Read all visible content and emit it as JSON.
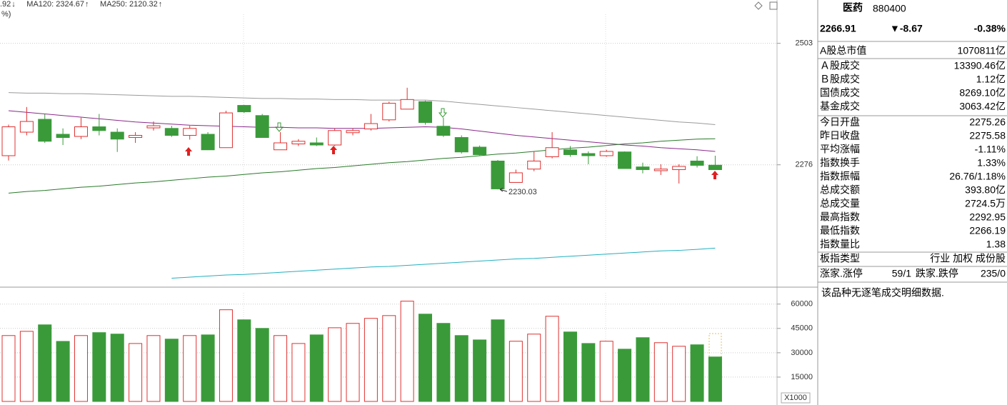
{
  "chart_data": [
    {
      "type": "candlestick",
      "legend": [
        {
          "name": ".92",
          "arrow": "↓",
          "color": "#2a7a2a"
        },
        {
          "name": "MA120: 2324.67",
          "arrow": "↑",
          "color": "#2a7a2a"
        },
        {
          "name": "MA250: 2120.32",
          "arrow": "↑",
          "color": "#20b0c0"
        }
      ],
      "legend_sub": "%)",
      "ylim": [
        2050,
        2584
      ],
      "yticks": [
        2503,
        2276
      ],
      "grid": true,
      "colors": {
        "up": "#e03030",
        "down": "#3a9a3a"
      },
      "candles": {
        "open": [
          2293,
          2337,
          2361,
          2333,
          2329,
          2347,
          2337,
          2327,
          2345,
          2344,
          2331,
          2333,
          2308,
          2387,
          2368,
          2304,
          2315,
          2317,
          2313,
          2336,
          2343,
          2360,
          2380,
          2394,
          2348,
          2327,
          2309,
          2283,
          2243,
          2268,
          2291,
          2304,
          2297,
          2293,
          2300,
          2272,
          2265,
          2267,
          2283,
          2275.26
        ],
        "close": [
          2347,
          2357,
          2320,
          2327,
          2347,
          2340,
          2324,
          2331,
          2349,
          2331,
          2344,
          2304,
          2373,
          2375,
          2327,
          2317,
          2320,
          2313,
          2340,
          2340,
          2353,
          2391,
          2398,
          2355,
          2331,
          2300,
          2295,
          2231,
          2261,
          2283,
          2308,
          2295,
          2293,
          2301,
          2269,
          2267,
          2268,
          2273,
          2275,
          2266.91
        ],
        "high": [
          2351,
          2384,
          2371,
          2344,
          2364,
          2371,
          2344,
          2337,
          2357,
          2349,
          2349,
          2337,
          2377,
          2388,
          2371,
          2337,
          2324,
          2327,
          2344,
          2344,
          2371,
          2394,
          2420,
          2396,
          2364,
          2331,
          2312,
          2285,
          2267,
          2301,
          2337,
          2311,
          2301,
          2304,
          2301,
          2280,
          2277,
          2277,
          2292,
          2292.95
        ],
        "low": [
          2284,
          2331,
          2317,
          2313,
          2324,
          2331,
          2300,
          2317,
          2340,
          2328,
          2323,
          2304,
          2308,
          2373,
          2327,
          2304,
          2311,
          2311,
          2311,
          2331,
          2340,
          2357,
          2380,
          2351,
          2328,
          2297,
          2293,
          2230.03,
          2243,
          2264,
          2288,
          2291,
          2277,
          2291,
          2269,
          2260,
          2257,
          2241,
          2271,
          2266.19
        ]
      },
      "annotation_index": 27,
      "lines": [
        {
          "color": "#9a9a9a",
          "values": [
            2411,
            2410,
            2410,
            2409,
            2409,
            2408,
            2407,
            2406,
            2405,
            2404,
            2404,
            2403,
            2402,
            2401,
            2400,
            2400,
            2399,
            2399,
            2398,
            2398,
            2397,
            2397,
            2397,
            2397,
            2395,
            2392,
            2389,
            2386,
            2383,
            2380,
            2377,
            2374,
            2371,
            2368,
            2365,
            2362,
            2359,
            2356,
            2354,
            2351
          ]
        },
        {
          "color": "#8a2a8a",
          "values": [
            2377,
            2374,
            2371,
            2368,
            2365,
            2362,
            2359,
            2356,
            2354,
            2352,
            2350,
            2349,
            2348,
            2347,
            2346,
            2346,
            2345,
            2345,
            2344,
            2344,
            2344,
            2345,
            2346,
            2347,
            2346,
            2343,
            2339,
            2335,
            2331,
            2328,
            2325,
            2322,
            2319,
            2316,
            2313,
            2311,
            2308,
            2306,
            2304,
            2301
          ]
        },
        {
          "color": "#2a7a2a",
          "values": [
            2223,
            2226,
            2228,
            2231,
            2234,
            2236,
            2239,
            2242,
            2244,
            2247,
            2250,
            2253,
            2255,
            2258,
            2261,
            2263,
            2266,
            2269,
            2271,
            2274,
            2277,
            2280,
            2282,
            2285,
            2288,
            2290,
            2293,
            2296,
            2298,
            2301,
            2304,
            2307,
            2309,
            2312,
            2315,
            2317,
            2320,
            2322,
            2324,
            2324.67
          ]
        },
        {
          "color": "#20b0c0",
          "values": [
            null,
            null,
            null,
            null,
            null,
            null,
            null,
            null,
            null,
            2064,
            2066,
            2068,
            2070,
            2071,
            2073,
            2075,
            2077,
            2079,
            2081,
            2083,
            2085,
            2086,
            2088,
            2090,
            2092,
            2094,
            2096,
            2098,
            2100,
            2101,
            2103,
            2105,
            2107,
            2109,
            2111,
            2113,
            2115,
            2116,
            2118,
            2120.32
          ]
        }
      ]
    },
    {
      "type": "bar",
      "unit_label": "X1000",
      "ylim": [
        0,
        70000
      ],
      "yticks": [
        60000,
        45000,
        30000,
        15000
      ],
      "grid": true,
      "values": [
        40600,
        43200,
        47200,
        37000,
        40600,
        42400,
        41500,
        35700,
        40600,
        38400,
        40600,
        41000,
        56500,
        50300,
        45000,
        40600,
        35700,
        41000,
        45400,
        48100,
        51200,
        52900,
        61800,
        53800,
        48100,
        40600,
        37900,
        50300,
        37100,
        41500,
        52500,
        42800,
        35700,
        37100,
        32200,
        39300,
        36200,
        34000,
        34900,
        27400
      ]
    }
  ],
  "panel": {
    "name": "医药",
    "code": "880400",
    "price": "2266.91",
    "change": "▼-8.67",
    "change_pct": "-0.38%",
    "price_color": "#2a9a2a",
    "rows": [
      {
        "label": "A股总市值",
        "value": "1070811亿",
        "color": "#000000"
      },
      {
        "label": "Ａ股成交",
        "value": "13390.46亿",
        "color": "#000000"
      },
      {
        "label": "Ｂ股成交",
        "value": "1.12亿",
        "color": "#000000"
      },
      {
        "label": "国债成交",
        "value": "8269.10亿",
        "color": "#000000"
      },
      {
        "label": "基金成交",
        "value": "3063.42亿",
        "color": "#000000"
      },
      {
        "label": "今日开盘",
        "value": "2275.26",
        "color": "#2a9a2a"
      },
      {
        "label": "昨日收盘",
        "value": "2275.58",
        "color": "#000000"
      },
      {
        "label": "平均涨幅",
        "value": "-1.11%",
        "color": "#2a9a2a"
      },
      {
        "label": "指数换手",
        "value": "1.33%",
        "color": "#000000"
      },
      {
        "label": "指数振幅",
        "value": "26.76/1.18%",
        "color": "#000000"
      },
      {
        "label": "总成交额",
        "value": "393.80亿",
        "color": "#000000"
      },
      {
        "label": "总成交量",
        "value": "2724.5万",
        "color": "#000000"
      },
      {
        "label": "最高指数",
        "value": "2292.95",
        "color": "#e03030"
      },
      {
        "label": "最低指数",
        "value": "2266.19",
        "color": "#2a9a2a"
      },
      {
        "label": "指数量比",
        "value": "1.38",
        "color": "#e03030"
      }
    ],
    "type_label": "板指类型",
    "type_value": "行业 加权 成份股",
    "up_label": "涨家.涨停",
    "up_value": "59/1",
    "down_label": "跌家.跌停",
    "down_value": "235/0",
    "note": "该品种无逐笔成交明细数据."
  }
}
